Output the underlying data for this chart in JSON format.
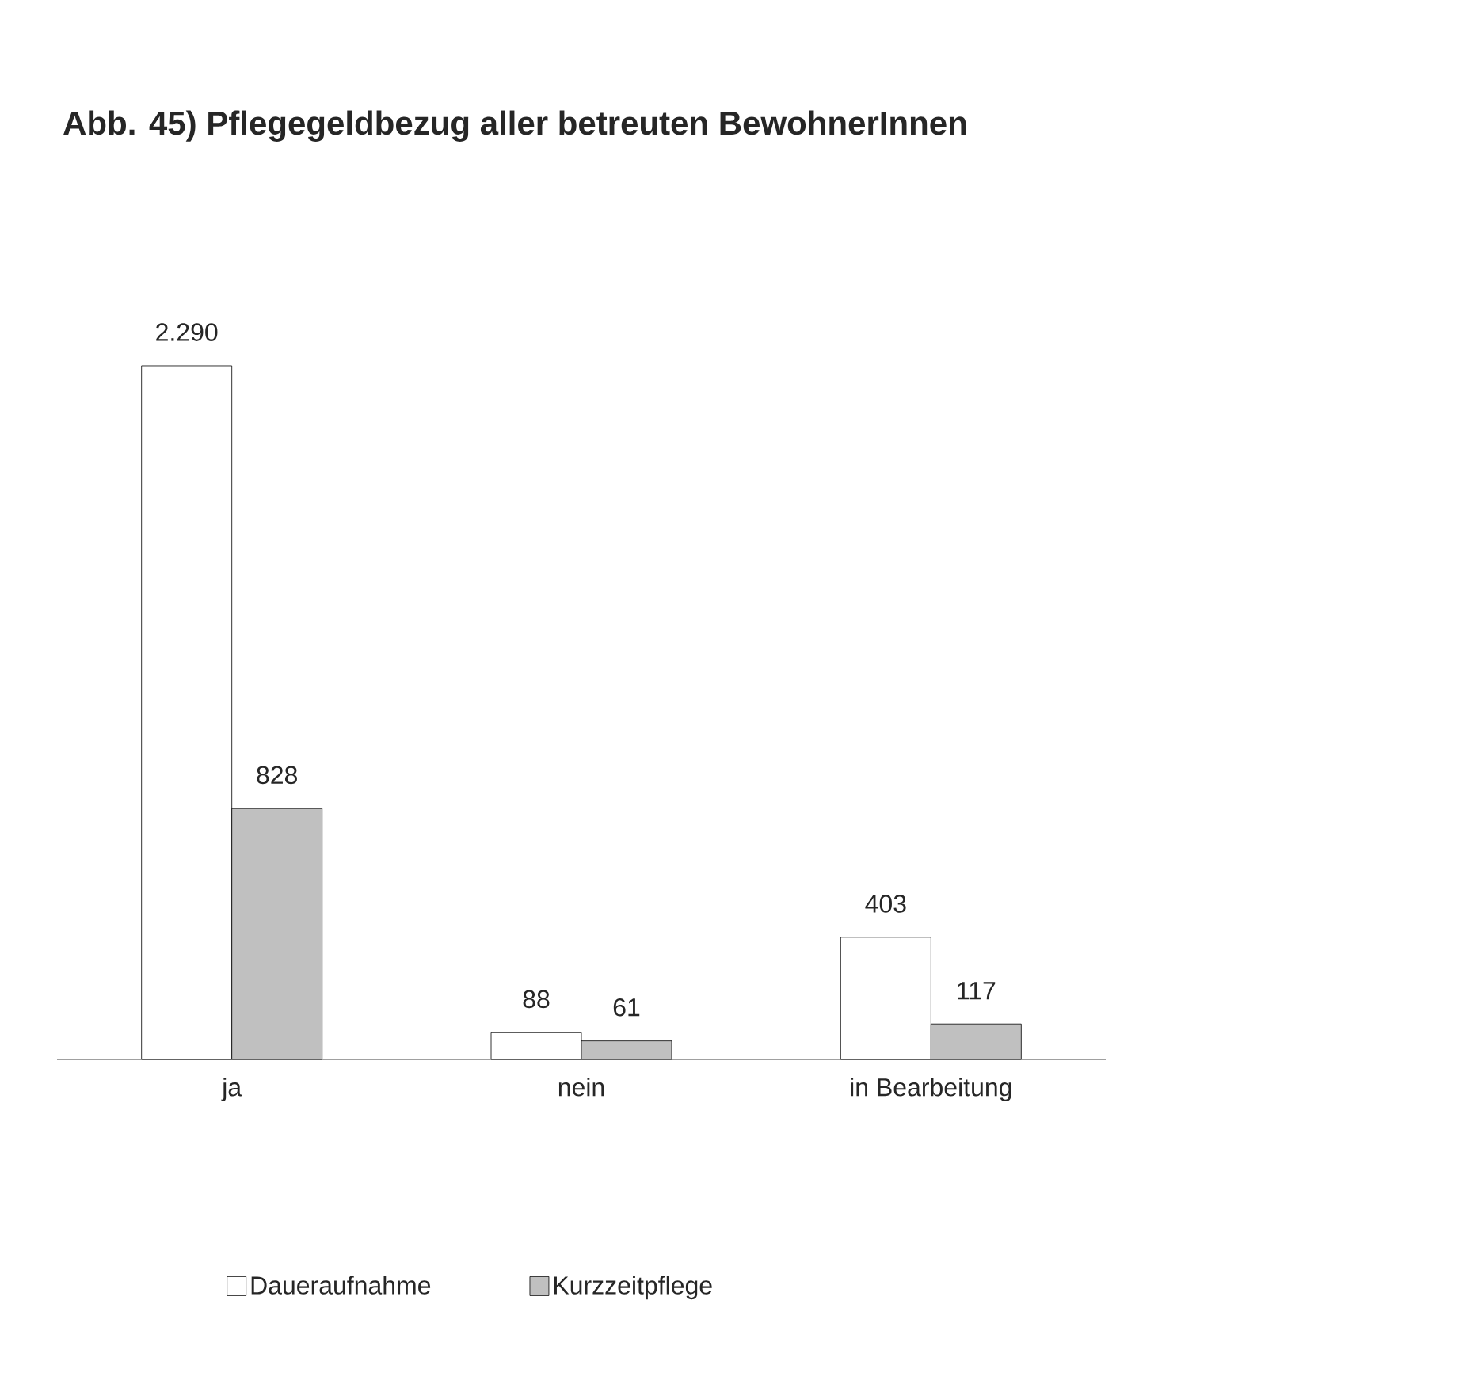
{
  "chart_data": {
    "type": "bar",
    "title": "Abb. 45) Pflegegeldbezug aller betreuten BewohnerInnen",
    "categories": [
      "ja",
      "nein",
      "in Bearbeitung"
    ],
    "series": [
      {
        "name": "Daueraufnahme",
        "color": "#ffffff",
        "values": [
          2290,
          88,
          403
        ],
        "value_labels": [
          "2.290",
          "88",
          "403"
        ]
      },
      {
        "name": "Kurzzeitpflege",
        "color": "#c0c0c0",
        "values": [
          828,
          61,
          117
        ],
        "value_labels": [
          "828",
          "61",
          "117"
        ]
      }
    ],
    "legend": "bottom left"
  }
}
